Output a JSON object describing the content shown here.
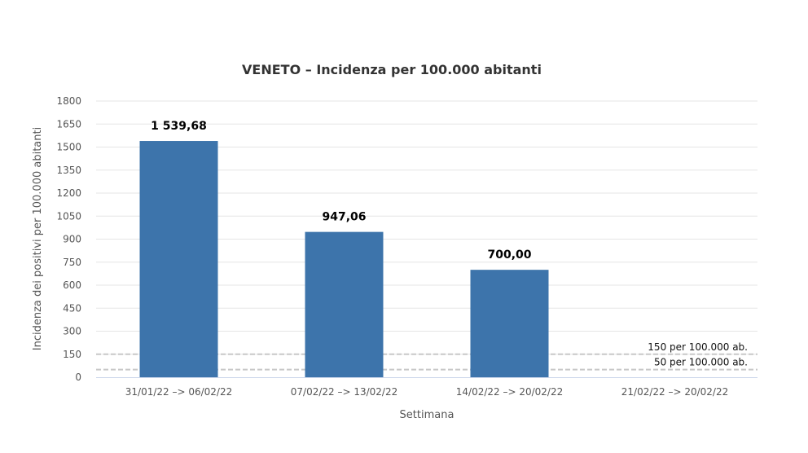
{
  "chart_data": {
    "type": "bar",
    "title": "VENETO – Incidenza per 100.000 abitanti",
    "xlabel": "Settimana",
    "ylabel": "Incidenza dei positivi per 100.000 abitanti",
    "categories": [
      "31/01/22 –> 06/02/22",
      "07/02/22 –> 13/02/22",
      "14/02/22 –> 20/02/22",
      "21/02/22 –> 20/02/22"
    ],
    "values": [
      1539.68,
      947.06,
      700.0,
      null
    ],
    "data_labels": [
      "1 539,68",
      "947,06",
      "700,00",
      ""
    ],
    "ylim": [
      0,
      1800
    ],
    "yticks": [
      0,
      150,
      300,
      450,
      600,
      750,
      900,
      1050,
      1200,
      1350,
      1500,
      1650,
      1800
    ],
    "grid": true,
    "legend": "none",
    "bar_color": "#3d74ab",
    "reference_lines": [
      {
        "value": 150,
        "label": "150 per 100.000 ab.",
        "color": "#c8c8c8"
      },
      {
        "value": 50,
        "label": "50 per 100.000 ab.",
        "color": "#c8c8c8"
      }
    ]
  }
}
